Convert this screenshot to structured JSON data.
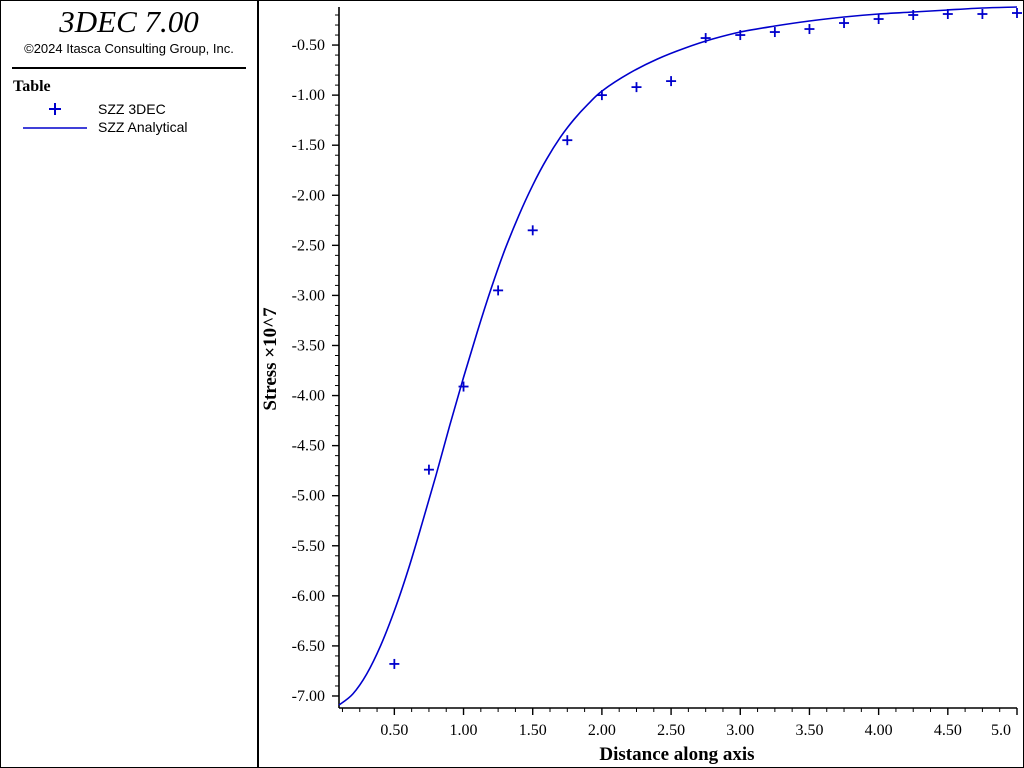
{
  "header": {
    "app_title": "3DEC 7.00",
    "copyright": "©2024 Itasca Consulting Group, Inc."
  },
  "legend": {
    "title": "Table",
    "items": [
      {
        "label": "SZZ 3DEC",
        "symbol": "plus"
      },
      {
        "label": "SZZ Analytical",
        "symbol": "line"
      }
    ]
  },
  "chart_data": {
    "type": "scatter",
    "xlabel": "Distance along axis",
    "ylabel": "Stress ×10^7",
    "xlim": [
      0.1,
      5.0
    ],
    "ylim": [
      -7.12,
      -0.12
    ],
    "xticks": [
      0.5,
      1.0,
      1.5,
      2.0,
      2.5,
      3.0,
      3.5,
      4.0,
      4.5,
      5.0
    ],
    "xtick_labels": [
      "0.50",
      "1.00",
      "1.50",
      "2.00",
      "2.50",
      "3.00",
      "3.50",
      "4.00",
      "4.50",
      "5.0"
    ],
    "yticks": [
      -0.5,
      -1.0,
      -1.5,
      -2.0,
      -2.5,
      -3.0,
      -3.5,
      -4.0,
      -4.5,
      -5.0,
      -5.5,
      -6.0,
      -6.5,
      -7.0
    ],
    "ytick_labels": [
      "-0.50",
      "-1.00",
      "-1.50",
      "-2.00",
      "-2.50",
      "-3.00",
      "-3.50",
      "-4.00",
      "-4.50",
      "-5.00",
      "-5.50",
      "-6.00",
      "-6.50",
      "-7.00"
    ],
    "color": "#0000cc",
    "grid": false,
    "series": [
      {
        "name": "SZZ 3DEC",
        "style": "plus",
        "x": [
          0.5,
          0.75,
          1.0,
          1.25,
          1.5,
          1.75,
          2.0,
          2.25,
          2.5,
          2.75,
          3.0,
          3.25,
          3.5,
          3.75,
          4.0,
          4.25,
          4.5,
          4.75,
          5.0
        ],
        "y": [
          -6.68,
          -4.74,
          -3.91,
          -2.95,
          -2.35,
          -1.45,
          -1.0,
          -0.92,
          -0.86,
          -0.43,
          -0.4,
          -0.37,
          -0.34,
          -0.28,
          -0.24,
          -0.2,
          -0.19,
          -0.19,
          -0.18
        ]
      },
      {
        "name": "SZZ Analytical",
        "style": "line",
        "x": [
          0.1,
          0.2,
          0.3,
          0.4,
          0.5,
          0.6,
          0.7,
          0.8,
          0.9,
          1.0,
          1.1,
          1.2,
          1.3,
          1.4,
          1.5,
          1.6,
          1.7,
          1.8,
          1.9,
          2.0,
          2.2,
          2.4,
          2.6,
          2.8,
          3.0,
          3.25,
          3.5,
          3.75,
          4.0,
          4.25,
          4.5,
          4.75,
          5.0
        ],
        "y": [
          -7.09,
          -6.98,
          -6.78,
          -6.5,
          -6.15,
          -5.74,
          -5.28,
          -4.8,
          -4.3,
          -3.82,
          -3.36,
          -2.93,
          -2.54,
          -2.2,
          -1.9,
          -1.64,
          -1.42,
          -1.24,
          -1.09,
          -0.96,
          -0.78,
          -0.64,
          -0.53,
          -0.44,
          -0.37,
          -0.31,
          -0.26,
          -0.22,
          -0.19,
          -0.17,
          -0.15,
          -0.13,
          -0.12
        ]
      }
    ]
  }
}
